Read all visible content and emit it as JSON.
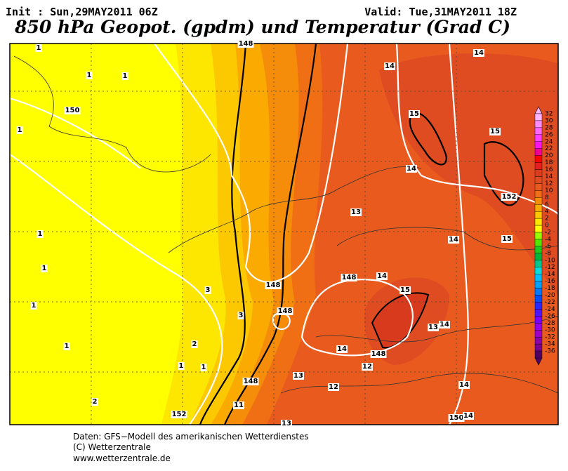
{
  "header": {
    "init": "Init : Sun,29MAY2011 06Z",
    "valid": "Valid: Tue,31MAY2011 18Z",
    "title": "850 hPa Geopot. (gpdm) und Temperatur (Grad C)"
  },
  "footer": [
    "Daten: GFS−Modell des amerikanischen Wetterdienstes",
    "(C) Wetterzentrale",
    "www.wetterzentrale.de"
  ],
  "legend": {
    "levels": [
      {
        "value": 32,
        "color": "#ffb4ff"
      },
      {
        "value": 30,
        "color": "#ff8cff"
      },
      {
        "value": 28,
        "color": "#ff64ff"
      },
      {
        "value": 26,
        "color": "#ff3cff"
      },
      {
        "value": 24,
        "color": "#ff14f0"
      },
      {
        "value": 22,
        "color": "#f00096"
      },
      {
        "value": 20,
        "color": "#ff0000"
      },
      {
        "value": 18,
        "color": "#e61e1e"
      },
      {
        "value": 16,
        "color": "#dc3c1e"
      },
      {
        "value": 14,
        "color": "#e04c22"
      },
      {
        "value": 12,
        "color": "#e85a1e"
      },
      {
        "value": 10,
        "color": "#f06e14"
      },
      {
        "value": 8,
        "color": "#f58c0a"
      },
      {
        "value": 6,
        "color": "#faaa00"
      },
      {
        "value": 4,
        "color": "#fcc800"
      },
      {
        "value": 2,
        "color": "#fde600"
      },
      {
        "value": 0,
        "color": "#ffff00"
      },
      {
        "value": -2,
        "color": "#96ff00"
      },
      {
        "value": -4,
        "color": "#50e600"
      },
      {
        "value": -6,
        "color": "#1ec81e"
      },
      {
        "value": -8,
        "color": "#00b43c"
      },
      {
        "value": -10,
        "color": "#00c88c"
      },
      {
        "value": -12,
        "color": "#00dcdc"
      },
      {
        "value": -14,
        "color": "#00beff"
      },
      {
        "value": -16,
        "color": "#00a0ff"
      },
      {
        "value": -18,
        "color": "#0078ff"
      },
      {
        "value": -20,
        "color": "#0050ff"
      },
      {
        "value": -22,
        "color": "#2828ff"
      },
      {
        "value": -24,
        "color": "#5014ff"
      },
      {
        "value": -26,
        "color": "#7800ff"
      },
      {
        "value": -28,
        "color": "#9600e6"
      },
      {
        "value": -30,
        "color": "#a000c8"
      },
      {
        "value": -32,
        "color": "#8c00aa"
      },
      {
        "value": -34,
        "color": "#78008c"
      },
      {
        "value": -36,
        "color": "#500064"
      }
    ]
  },
  "map_labels": [
    "1",
    "1",
    "1",
    "150",
    "1",
    "1",
    "1",
    "1",
    "1",
    "2",
    "1",
    "1",
    "2",
    "152",
    "3",
    "3",
    "148",
    "148",
    "148",
    "11",
    "13",
    "13",
    "12",
    "12",
    "14",
    "148",
    "148",
    "14",
    "15",
    "13",
    "14",
    "14",
    "150",
    "14",
    "14",
    "15",
    "13",
    "14",
    "15",
    "15",
    "14",
    "14",
    "152",
    "148"
  ]
}
